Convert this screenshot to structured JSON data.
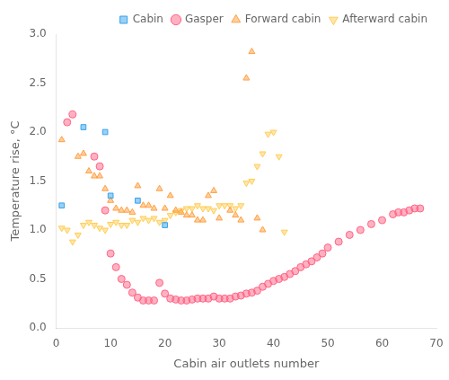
{
  "chart_data": {
    "type": "scatter",
    "xlabel": "Cabin air outlets number",
    "ylabel": "Temperature rise, °C",
    "xlim": [
      0,
      70
    ],
    "ylim": [
      0.0,
      3.0
    ],
    "xticks": [
      0,
      10,
      20,
      30,
      40,
      50,
      60,
      70
    ],
    "yticks": [
      {
        "value": 0.0,
        "label": "0.0"
      },
      0.5,
      {
        "value": 1.0,
        "label": "1.0"
      },
      1.5,
      {
        "value": 2.0,
        "label": "2.0"
      },
      2.5,
      {
        "value": 3.0,
        "label": "3.0"
      }
    ],
    "grid": false,
    "legend": "upper right",
    "series": [
      {
        "name": "Cabin",
        "marker": "square",
        "x": [
          1,
          5,
          9,
          10,
          15,
          20
        ],
        "values": [
          1.25,
          2.05,
          2.0,
          1.35,
          1.3,
          1.05
        ]
      },
      {
        "name": "Gasper",
        "marker": "circle",
        "x": [
          2,
          3,
          7,
          8,
          9,
          10,
          11,
          12,
          13,
          14,
          15,
          16,
          17,
          18,
          19,
          20,
          21,
          22,
          23,
          24,
          25,
          26,
          27,
          28,
          29,
          30,
          31,
          32,
          33,
          34,
          35,
          36,
          37,
          38,
          39,
          40,
          41,
          42,
          43,
          44,
          45,
          46,
          47,
          48,
          49,
          50,
          52,
          54,
          56,
          58,
          60,
          62,
          63,
          64,
          65,
          66,
          67
        ],
        "values": [
          2.1,
          2.18,
          1.75,
          1.65,
          1.2,
          0.76,
          0.62,
          0.5,
          0.44,
          0.36,
          0.31,
          0.28,
          0.28,
          0.28,
          0.46,
          0.35,
          0.3,
          0.29,
          0.28,
          0.28,
          0.29,
          0.3,
          0.3,
          0.3,
          0.32,
          0.3,
          0.3,
          0.3,
          0.32,
          0.33,
          0.35,
          0.36,
          0.38,
          0.42,
          0.45,
          0.48,
          0.5,
          0.52,
          0.55,
          0.58,
          0.62,
          0.65,
          0.68,
          0.72,
          0.76,
          0.82,
          0.88,
          0.95,
          1.0,
          1.06,
          1.1,
          1.16,
          1.18,
          1.18,
          1.2,
          1.22,
          1.22
        ]
      },
      {
        "name": "Forward cabin",
        "marker": "triangle",
        "x": [
          1,
          4,
          5,
          6,
          7,
          8,
          9,
          10,
          11,
          12,
          13,
          14,
          15,
          16,
          17,
          18,
          19,
          20,
          21,
          22,
          23,
          24,
          25,
          26,
          27,
          28,
          29,
          30,
          32,
          33,
          34,
          35,
          36,
          37,
          38
        ],
        "values": [
          1.92,
          1.75,
          1.78,
          1.6,
          1.55,
          1.55,
          1.42,
          1.3,
          1.22,
          1.2,
          1.2,
          1.18,
          1.45,
          1.25,
          1.25,
          1.22,
          1.42,
          1.22,
          1.35,
          1.2,
          1.18,
          1.15,
          1.15,
          1.1,
          1.1,
          1.35,
          1.4,
          1.12,
          1.2,
          1.15,
          1.1,
          2.55,
          2.82,
          1.12,
          1.0
        ]
      },
      {
        "name": "Afterward cabin",
        "marker": "triangle_down",
        "x": [
          1,
          2,
          3,
          4,
          5,
          6,
          7,
          8,
          9,
          10,
          11,
          12,
          13,
          14,
          15,
          16,
          17,
          18,
          19,
          20,
          21,
          22,
          23,
          24,
          25,
          26,
          27,
          28,
          29,
          30,
          31,
          32,
          33,
          34,
          35,
          36,
          37,
          38,
          39,
          40,
          41,
          42
        ],
        "values": [
          1.02,
          1.0,
          0.88,
          0.95,
          1.05,
          1.08,
          1.05,
          1.02,
          1.0,
          1.06,
          1.08,
          1.05,
          1.05,
          1.1,
          1.08,
          1.12,
          1.1,
          1.12,
          1.08,
          1.1,
          1.15,
          1.18,
          1.2,
          1.22,
          1.22,
          1.25,
          1.22,
          1.22,
          1.2,
          1.25,
          1.25,
          1.25,
          1.22,
          1.25,
          1.48,
          1.5,
          1.65,
          1.78,
          1.98,
          2.0,
          1.75,
          0.98
        ]
      }
    ]
  }
}
